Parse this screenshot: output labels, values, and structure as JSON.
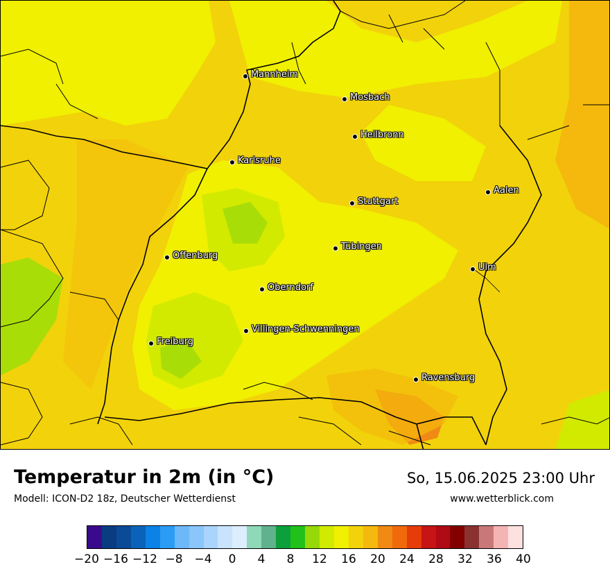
{
  "map": {
    "cities": [
      {
        "name": "Mannheim"
      },
      {
        "name": "Mosbach"
      },
      {
        "name": "Heilbronn"
      },
      {
        "name": "Karlsruhe"
      },
      {
        "name": "Aalen"
      },
      {
        "name": "Stuttgart"
      },
      {
        "name": "Tübingen"
      },
      {
        "name": "Offenburg"
      },
      {
        "name": "Ulm"
      },
      {
        "name": "Oberndorf"
      },
      {
        "name": "Villingen-Schwenningen"
      },
      {
        "name": "Freiburg"
      },
      {
        "name": "Ravensburg"
      }
    ],
    "colors": {
      "base": "#f2d20b",
      "warm": "#f4b90c",
      "cool": "#f0f000",
      "cooler": "#d2ea00",
      "cold": "#a9dd08",
      "hot": "#f08a14"
    }
  },
  "footer": {
    "title": "Temperatur in 2m (in °C)",
    "model": "Modell: ICON-D2 18z, Deutscher Wetterdienst",
    "datetime": "So, 15.06.2025 23:00 Uhr",
    "website": "www.wetterblick.com"
  },
  "legend": {
    "colors": [
      "#3a0a8c",
      "#0a3c82",
      "#0a4a96",
      "#0a63b8",
      "#0a82e6",
      "#2a9cf5",
      "#6db8f8",
      "#8ac6fa",
      "#aad4fc",
      "#c9e3fd",
      "#dcedfe",
      "#8ed9b8",
      "#60b28c",
      "#0ca03c",
      "#22c01a",
      "#96d808",
      "#d0ea00",
      "#f0f000",
      "#f2d20b",
      "#f4b90c",
      "#f08a14",
      "#f06a0c",
      "#e63c0a",
      "#c81414",
      "#b00a14",
      "#820000",
      "#8a3232",
      "#c87878",
      "#f5b4b4",
      "#fde0e0"
    ],
    "tick_values": [
      "−20",
      "−16",
      "−12",
      "−8",
      "−4",
      "0",
      "4",
      "8",
      "12",
      "16",
      "20",
      "24",
      "28",
      "32",
      "36",
      "40"
    ],
    "range": [
      -20,
      40
    ]
  }
}
